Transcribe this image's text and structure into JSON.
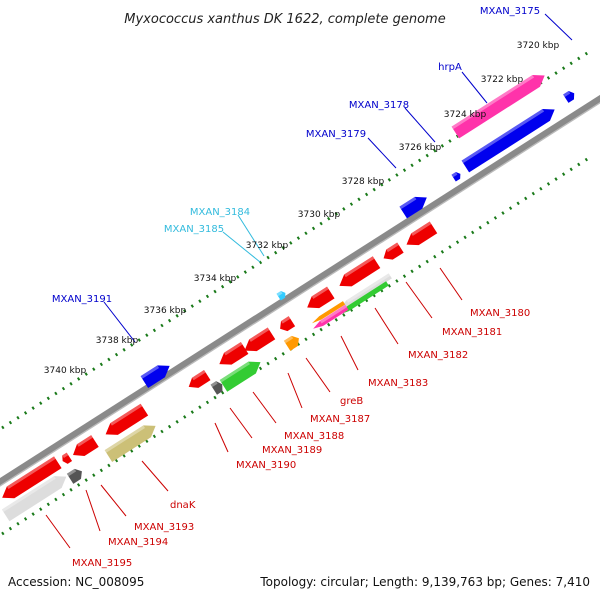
{
  "title": "Myxococcus xanthus DK 1622, complete genome",
  "footer": {
    "accession": "Accession: NC_008095",
    "summary": "Topology: circular; Length: 9,139,763 bp; Genes: 7,410"
  },
  "scale": {
    "tick_labels": [
      "3720 kbp",
      "3722 kbp",
      "3724 kbp",
      "3726 kbp",
      "3728 kbp",
      "3730 kbp",
      "3732 kbp",
      "3734 kbp",
      "3736 kbp",
      "3738 kbp",
      "3740 kbp"
    ]
  },
  "gene_labels": [
    {
      "text": "MXAN_3175",
      "color": "#0000cc"
    },
    {
      "text": "hrpA",
      "color": "#0000cc"
    },
    {
      "text": "MXAN_3178",
      "color": "#0000cc"
    },
    {
      "text": "MXAN_3179",
      "color": "#0000cc"
    },
    {
      "text": "MXAN_3184",
      "color": "#33bbdd"
    },
    {
      "text": "MXAN_3185",
      "color": "#33bbdd"
    },
    {
      "text": "MXAN_3191",
      "color": "#0000cc"
    },
    {
      "text": "MXAN_3180",
      "color": "#cc0000"
    },
    {
      "text": "MXAN_3181",
      "color": "#cc0000"
    },
    {
      "text": "MXAN_3182",
      "color": "#cc0000"
    },
    {
      "text": "MXAN_3183",
      "color": "#cc0000"
    },
    {
      "text": "greB",
      "color": "#cc0000"
    },
    {
      "text": "MXAN_3187",
      "color": "#cc0000"
    },
    {
      "text": "MXAN_3188",
      "color": "#cc0000"
    },
    {
      "text": "MXAN_3189",
      "color": "#cc0000"
    },
    {
      "text": "MXAN_3190",
      "color": "#cc0000"
    },
    {
      "text": "dnaK",
      "color": "#cc0000"
    },
    {
      "text": "MXAN_3193",
      "color": "#cc0000"
    },
    {
      "text": "MXAN_3194",
      "color": "#cc0000"
    },
    {
      "text": "MXAN_3195",
      "color": "#cc0000"
    }
  ],
  "colors": {
    "backbone": "#888888",
    "tick_outer": "#1a7a1a",
    "tick_inner": "#1a7a1a",
    "forward_gene": "#0000ee",
    "reverse_gene": "#ee0000",
    "highlight_pink": "#ff33aa",
    "green": "#33cc33",
    "orange": "#ff9900",
    "olive": "#ccc077",
    "light_gray": "#dddddd",
    "dark_gray": "#555555",
    "cyan": "#33ccff"
  }
}
